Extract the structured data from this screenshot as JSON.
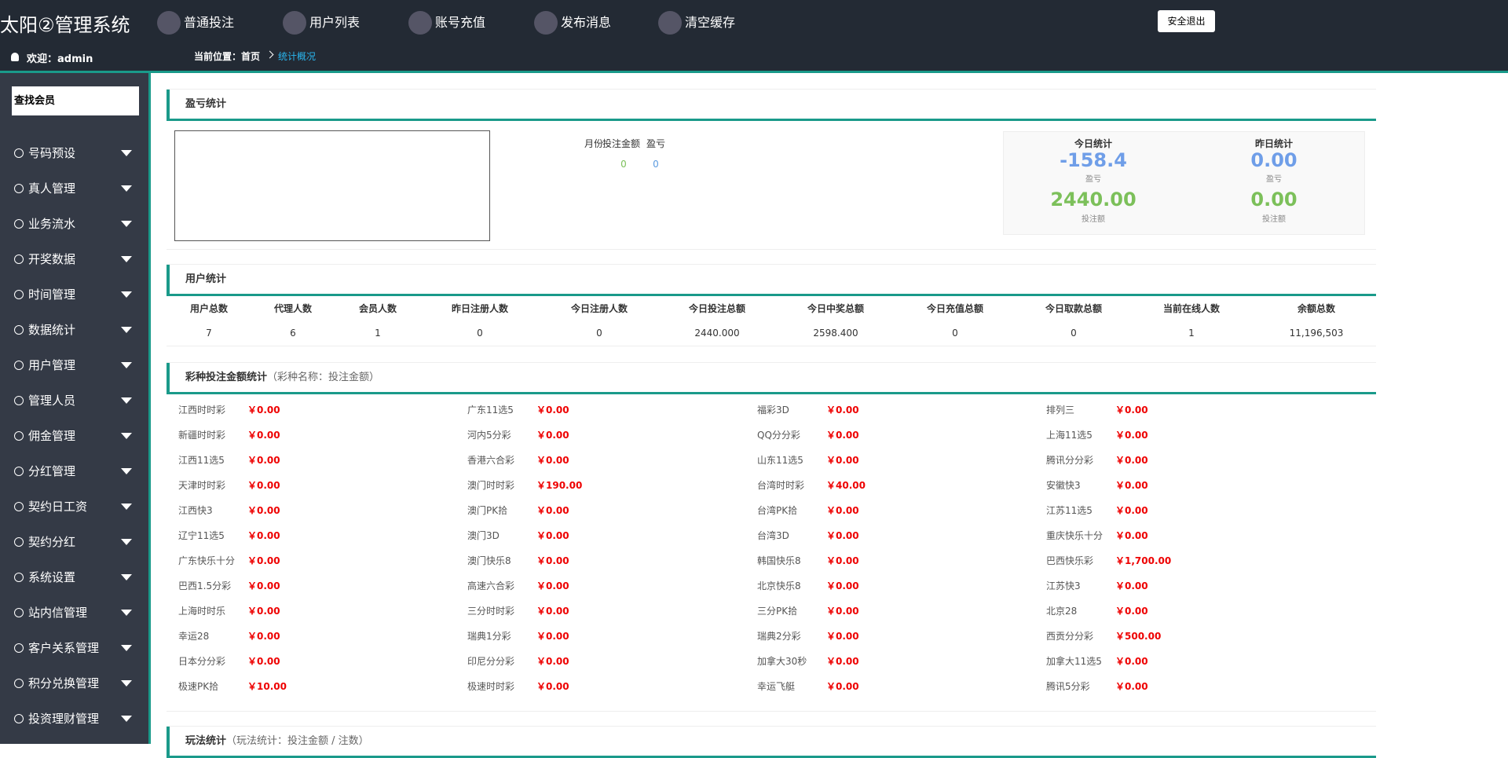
{
  "header": {
    "title": "太阳②管理系统",
    "nav": [
      "普通投注",
      "用户列表",
      "账号充值",
      "发布消息",
      "清空缓存"
    ],
    "logout": "安全退出",
    "welcome": "欢迎：admin",
    "breadcrumb": {
      "label": "当前位置：",
      "home": "首页",
      "current": "统计概况"
    }
  },
  "sidebar": {
    "search": "查找会员",
    "menu": [
      "号码预设",
      "真人管理",
      "业务流水",
      "开奖数据",
      "时间管理",
      "数据统计",
      "用户管理",
      "管理人员",
      "佣金管理",
      "分红管理",
      "契约日工资",
      "契约分红",
      "系统设置",
      "站内信管理",
      "客户关系管理",
      "积分兑换管理",
      "投资理财管理"
    ]
  },
  "profit_panel": {
    "title": "盈亏统计",
    "table_headers": [
      "月份",
      "投注金额",
      "盈亏"
    ],
    "table_values": [
      "0",
      "0"
    ],
    "today": {
      "title": "今日统计",
      "profit": "-158.4",
      "profit_label": "盈亏",
      "bet": "2440.00",
      "bet_label": "投注额"
    },
    "yesterday": {
      "title": "昨日统计",
      "profit": "0.00",
      "profit_label": "盈亏",
      "bet": "0.00",
      "bet_label": "投注额"
    }
  },
  "user_panel": {
    "title": "用户统计",
    "headers": [
      "用户总数",
      "代理人数",
      "会员人数",
      "昨日注册人数",
      "今日注册人数",
      "今日投注总额",
      "今日中奖总额",
      "今日充值总额",
      "今日取款总额",
      "当前在线人数",
      "余额总数"
    ],
    "values": [
      "7",
      "6",
      "1",
      "0",
      "0",
      "2440.000",
      "2598.400",
      "0",
      "0",
      "1",
      "11,196,503"
    ]
  },
  "lottery_panel": {
    "title": "彩种投注金额统计",
    "subtitle": "（彩种名称：投注金额）",
    "items": [
      {
        "name": "江西时时彩",
        "amount": "￥0.00"
      },
      {
        "name": "广东11选5",
        "amount": "￥0.00"
      },
      {
        "name": "福彩3D",
        "amount": "￥0.00"
      },
      {
        "name": "排列三",
        "amount": "￥0.00"
      },
      {
        "name": "新疆时时彩",
        "amount": "￥0.00"
      },
      {
        "name": "河内5分彩",
        "amount": "￥0.00"
      },
      {
        "name": "QQ分分彩",
        "amount": "￥0.00"
      },
      {
        "name": "上海11选5",
        "amount": "￥0.00"
      },
      {
        "name": "江西11选5",
        "amount": "￥0.00"
      },
      {
        "name": "香港六合彩",
        "amount": "￥0.00"
      },
      {
        "name": "山东11选5",
        "amount": "￥0.00"
      },
      {
        "name": "腾讯分分彩",
        "amount": "￥0.00"
      },
      {
        "name": "天津时时彩",
        "amount": "￥0.00"
      },
      {
        "name": "澳门时时彩",
        "amount": "￥190.00"
      },
      {
        "name": "台湾时时彩",
        "amount": "￥40.00"
      },
      {
        "name": "安徽快3",
        "amount": "￥0.00"
      },
      {
        "name": "江西快3",
        "amount": "￥0.00"
      },
      {
        "name": "澳门PK拾",
        "amount": "￥0.00"
      },
      {
        "name": "台湾PK拾",
        "amount": "￥0.00"
      },
      {
        "name": "江苏11选5",
        "amount": "￥0.00"
      },
      {
        "name": "辽宁11选5",
        "amount": "￥0.00"
      },
      {
        "name": "澳门3D",
        "amount": "￥0.00"
      },
      {
        "name": "台湾3D",
        "amount": "￥0.00"
      },
      {
        "name": "重庆快乐十分",
        "amount": "￥0.00"
      },
      {
        "name": "广东快乐十分",
        "amount": "￥0.00"
      },
      {
        "name": "澳门快乐8",
        "amount": "￥0.00"
      },
      {
        "name": "韩国快乐8",
        "amount": "￥0.00"
      },
      {
        "name": "巴西快乐彩",
        "amount": "￥1,700.00"
      },
      {
        "name": "巴西1.5分彩",
        "amount": "￥0.00"
      },
      {
        "name": "高速六合彩",
        "amount": "￥0.00"
      },
      {
        "name": "北京快乐8",
        "amount": "￥0.00"
      },
      {
        "name": "江苏快3",
        "amount": "￥0.00"
      },
      {
        "name": "上海时时乐",
        "amount": "￥0.00"
      },
      {
        "name": "三分时时彩",
        "amount": "￥0.00"
      },
      {
        "name": "三分PK拾",
        "amount": "￥0.00"
      },
      {
        "name": "北京28",
        "amount": "￥0.00"
      },
      {
        "name": "幸运28",
        "amount": "￥0.00"
      },
      {
        "name": "瑞典1分彩",
        "amount": "￥0.00"
      },
      {
        "name": "瑞典2分彩",
        "amount": "￥0.00"
      },
      {
        "name": "西贡分分彩",
        "amount": "￥500.00"
      },
      {
        "name": "日本分分彩",
        "amount": "￥0.00"
      },
      {
        "name": "印尼分分彩",
        "amount": "￥0.00"
      },
      {
        "name": "加拿大30秒",
        "amount": "￥0.00"
      },
      {
        "name": "加拿大11选5",
        "amount": "￥0.00"
      },
      {
        "name": "极速PK拾",
        "amount": "￥10.00"
      },
      {
        "name": "极速时时彩",
        "amount": "￥0.00"
      },
      {
        "name": "幸运飞艇",
        "amount": "￥0.00"
      },
      {
        "name": "腾讯5分彩",
        "amount": "￥0.00"
      }
    ]
  },
  "play_panel": {
    "title": "玩法统计",
    "subtitle": "（玩法统计：投注金额 / 注数）"
  }
}
